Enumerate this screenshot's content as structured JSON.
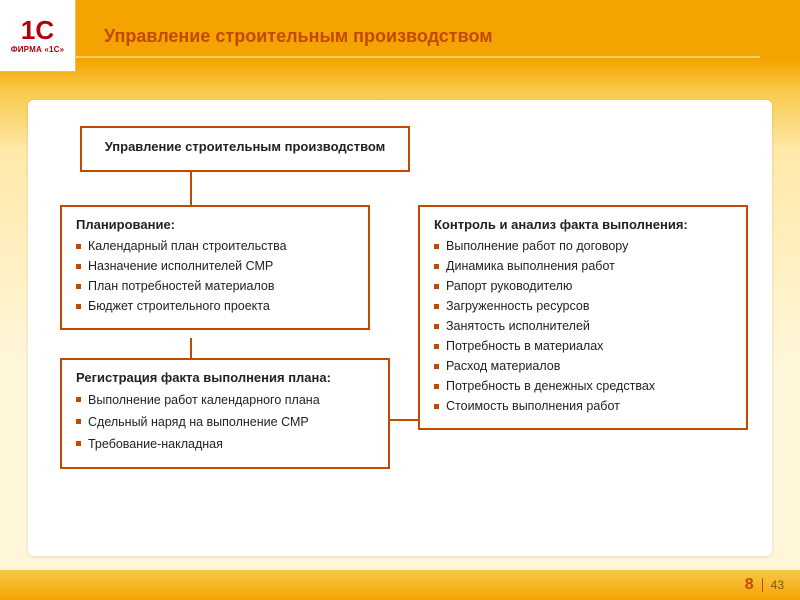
{
  "brand": {
    "glyph": "1C",
    "caption": "ФИРМА «1С»",
    "color": "#b3000c"
  },
  "slide_title": "Управление строительным производством",
  "colors": {
    "accent": "#c24a00",
    "border": "#c24a00",
    "gradient_top": "#f5a300",
    "gradient_light": "#fff6d9",
    "panel_bg": "#ffffff"
  },
  "box1": {
    "title": "Управление строительным производством"
  },
  "box2": {
    "title": "Планирование:",
    "items": [
      "Календарный план строительства",
      "Назначение исполнителей СМР",
      "План потребностей материалов",
      "Бюджет строительного проекта"
    ]
  },
  "box3": {
    "title": "Регистрация факта выполнения плана:",
    "items": [
      "Выполнение работ календарного плана",
      "Сдельный наряд на выполнение СМР",
      "Требование-накладная"
    ]
  },
  "box4": {
    "title": "Контроль и анализ факта выполнения:",
    "items": [
      "Выполнение работ по договору",
      "Динамика выполнения работ",
      "Рапорт руководителю",
      "Загруженность ресурсов",
      "Занятость исполнителей",
      "Потребность в материалах",
      "Расход материалов",
      "Потребность в денежных средствах",
      "Стоимость выполнения работ"
    ]
  },
  "pager": {
    "current": "8",
    "total": "43"
  }
}
